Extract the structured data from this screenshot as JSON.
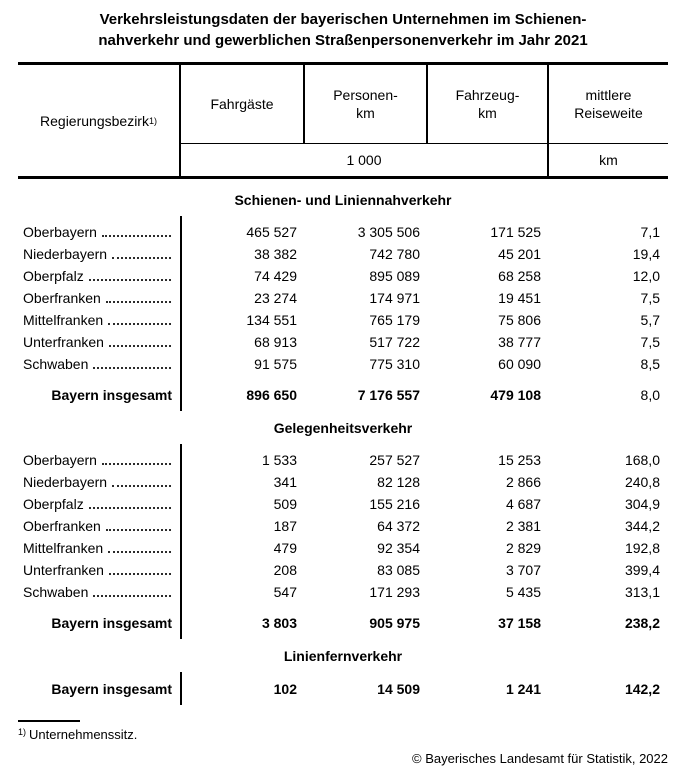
{
  "title": {
    "line1": "Verkehrsleistungsdaten der bayerischen Unternehmen im Schienen-",
    "line2": "nahverkehr und gewerblichen Straßenpersonenverkehr im Jahr 2021"
  },
  "table": {
    "header": {
      "region_col": "Regierungsbezirk",
      "region_col_footnote_mark": "1)",
      "columns": [
        "Fahrgäste",
        "Personen-\nkm",
        "Fahrzeug-\nkm",
        "mittlere\nReiseweite"
      ],
      "units_thousand": "1 000",
      "units_km": "km"
    },
    "sections": [
      {
        "title": "Schienen- und Liniennahverkehr",
        "rows": [
          {
            "label": "Oberbayern",
            "values": [
              "465 527",
              "3 305 506",
              "171 525",
              "7,1"
            ]
          },
          {
            "label": "Niederbayern",
            "values": [
              "38 382",
              "742 780",
              "45 201",
              "19,4"
            ]
          },
          {
            "label": "Oberpfalz",
            "values": [
              "74 429",
              "895 089",
              "68 258",
              "12,0"
            ]
          },
          {
            "label": "Oberfranken",
            "values": [
              "23 274",
              "174 971",
              "19 451",
              "7,5"
            ]
          },
          {
            "label": "Mittelfranken",
            "values": [
              "134 551",
              "765 179",
              "75 806",
              "5,7"
            ]
          },
          {
            "label": "Unterfranken",
            "values": [
              "68 913",
              "517 722",
              "38 777",
              "7,5"
            ]
          },
          {
            "label": "Schwaben",
            "values": [
              "91 575",
              "775 310",
              "60 090",
              "8,5"
            ]
          }
        ],
        "total": {
          "label": "Bayern insgesamt",
          "values": [
            "896 650",
            "7 176 557",
            "479 108",
            "8,0"
          ],
          "plain_value_indices": [
            3
          ]
        }
      },
      {
        "title": "Gelegenheitsverkehr",
        "rows": [
          {
            "label": "Oberbayern",
            "values": [
              "1 533",
              "257 527",
              "15 253",
              "168,0"
            ]
          },
          {
            "label": "Niederbayern",
            "values": [
              "341",
              "82 128",
              "2 866",
              "240,8"
            ]
          },
          {
            "label": "Oberpfalz",
            "values": [
              "509",
              "155 216",
              "4 687",
              "304,9"
            ]
          },
          {
            "label": "Oberfranken",
            "values": [
              "187",
              "64 372",
              "2 381",
              "344,2"
            ]
          },
          {
            "label": "Mittelfranken",
            "values": [
              "479",
              "92 354",
              "2 829",
              "192,8"
            ]
          },
          {
            "label": "Unterfranken",
            "values": [
              "208",
              "83 085",
              "3 707",
              "399,4"
            ]
          },
          {
            "label": "Schwaben",
            "values": [
              "547",
              "171 293",
              "5 435",
              "313,1"
            ]
          }
        ],
        "total": {
          "label": "Bayern insgesamt",
          "values": [
            "3 803",
            "905 975",
            "37 158",
            "238,2"
          ],
          "plain_value_indices": []
        }
      },
      {
        "title": "Linienfernverkehr",
        "rows": [],
        "total": {
          "label": "Bayern insgesamt",
          "values": [
            "102",
            "14 509",
            "1 241",
            "142,2"
          ],
          "plain_value_indices": []
        }
      }
    ]
  },
  "footnote": {
    "mark": "1)",
    "text": "Unternehmenssitz."
  },
  "copyright": "© Bayerisches Landesamt für Statistik, 2022"
}
